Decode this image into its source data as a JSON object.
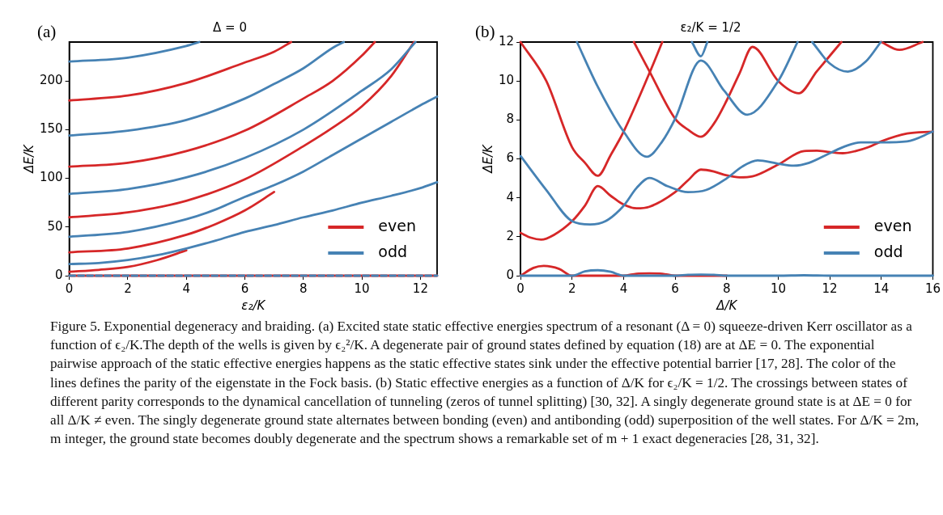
{
  "chart_data": [
    {
      "type": "line",
      "title": "Δ = 0",
      "xlabel": "ε₂/K",
      "ylabel": "ΔE/K",
      "xlim": [
        0,
        12.57
      ],
      "xticks": [
        0,
        2,
        4,
        6,
        8,
        10,
        12
      ],
      "ylim": [
        0,
        240
      ],
      "yticks": [
        0,
        50,
        100,
        150,
        200
      ],
      "legend": "bottom right",
      "annotations": [
        "(a)",
        "Figure 5. Exponential degeneracy and braiding. (a) Excited state static effective energies spectrum of a resonant (Δ = 0) squeeze-driven Kerr oscillator as a function of ϵ₂/K.The depth of the wells is given by ϵ₂²/K. A degenerate pair of ground states defined by equation (18) are at ΔE = 0. The exponential pairwise approach of the static effective energies happens as the static effective states sink under the effective potential barrier [17, 28]. The color of the lines defines the parity of the eigenstate in the Fock basis. (b) Static effective energies as a function of Δ/K for ϵ₂/K = 1/2. The crossings between states of different parity corresponds to the dynamical cancellation of tunneling (zeros of tunnel splitting) [30, 32]. A singly degenerate ground state is at ΔE = 0 for all Δ/K ≠ even. The singly degenerate ground state alternates between bonding (even) and antibonding (odd) superposition of the well states. For Δ/K = 2m, m integer, the ground state becomes doubly degenerate and the spectrum shows a remarkable set of m + 1 exact degeneracies [28, 31, 32]."
      ],
      "series": [
        {
          "name": "even",
          "color": "#d62728",
          "x": [
            0,
            12.57
          ],
          "values": [
            0,
            0
          ]
        },
        {
          "name": "odd",
          "color": "#4682b4",
          "x": [
            0,
            12.57
          ],
          "values": [
            0,
            0
          ],
          "line_style": "dashed"
        },
        {
          "color": "#d62728",
          "x": [
            0,
            1,
            2,
            3,
            4
          ],
          "values": [
            4,
            6,
            9,
            16,
            26
          ]
        },
        {
          "color": "#4682b4",
          "x": [
            0,
            1,
            2,
            3,
            4,
            5,
            6,
            7,
            8,
            9,
            10,
            11,
            12,
            12.57
          ],
          "values": [
            12,
            13,
            16,
            21,
            28,
            36,
            45,
            52,
            60,
            67,
            75,
            82,
            90,
            96
          ]
        },
        {
          "color": "#d62728",
          "x": [
            0,
            2,
            4,
            5,
            6,
            7
          ],
          "values": [
            24,
            28,
            42,
            53,
            67,
            86
          ]
        },
        {
          "color": "#4682b4",
          "x": [
            0,
            2,
            4,
            5,
            6,
            7,
            8,
            9,
            10,
            11,
            12,
            12.57
          ],
          "values": [
            40,
            45,
            58,
            68,
            81,
            93,
            107,
            124,
            141,
            158,
            175,
            184
          ]
        },
        {
          "color": "#d62728",
          "x": [
            0,
            2,
            4,
            6,
            8,
            9,
            10,
            11,
            11.78
          ],
          "values": [
            60,
            65,
            77,
            99,
            133,
            152,
            174,
            205,
            240
          ]
        },
        {
          "color": "#4682b4",
          "x": [
            0,
            2,
            4,
            6,
            8,
            10,
            11,
            11.83
          ],
          "values": [
            84,
            89,
            101,
            121,
            150,
            190,
            212,
            240
          ]
        },
        {
          "color": "#d62728",
          "x": [
            0,
            2,
            4,
            6,
            8,
            9,
            10,
            10.44
          ],
          "values": [
            112,
            116,
            128,
            149,
            182,
            200,
            226,
            240
          ]
        },
        {
          "color": "#4682b4",
          "x": [
            0,
            2,
            4,
            6,
            7,
            8,
            9,
            9.38
          ],
          "values": [
            144,
            149,
            160,
            182,
            197,
            213,
            234,
            240
          ]
        },
        {
          "color": "#d62728",
          "x": [
            0,
            2,
            4,
            6,
            7,
            7.58
          ],
          "values": [
            180,
            185,
            198,
            219,
            230,
            240
          ]
        },
        {
          "color": "#4682b4",
          "x": [
            0,
            2,
            4,
            4.44
          ],
          "values": [
            220,
            224,
            236,
            240
          ]
        }
      ]
    },
    {
      "type": "line",
      "title": "ε₂/K = 1/2",
      "xlabel": "Δ/K",
      "ylabel": "ΔE/K",
      "xlim": [
        0,
        16
      ],
      "xticks": [
        0,
        2,
        4,
        6,
        8,
        10,
        12,
        14,
        16
      ],
      "ylim": [
        0,
        12
      ],
      "yticks": [
        0,
        2,
        4,
        6,
        8,
        10,
        12
      ],
      "legend": "bottom right",
      "annotations": [
        "(b)"
      ],
      "series": [
        {
          "name": "even",
          "color": "#d62728",
          "x": [
            0,
            0.5,
            0.9,
            1.5,
            2,
            4,
            4.5,
            5,
            5.5,
            6,
            8
          ],
          "values": [
            0,
            0.4,
            0.5,
            0.35,
            0,
            0,
            0.1,
            0.12,
            0.1,
            0,
            0
          ]
        },
        {
          "name": "odd",
          "color": "#4682b4",
          "x": [
            0,
            2,
            2.5,
            3,
            3.5,
            4,
            6,
            6.5,
            7,
            7.5,
            8,
            10,
            11,
            12,
            16
          ],
          "values": [
            0,
            0,
            0.22,
            0.28,
            0.2,
            0,
            0,
            0.05,
            0.06,
            0.05,
            0,
            0,
            0.02,
            0,
            0
          ]
        },
        {
          "color": "#d62728",
          "x": [
            0,
            0.4,
            0.8,
            1.3,
            2,
            2.5,
            3,
            3.5,
            4,
            4.5,
            5,
            6,
            6.5,
            7,
            7.5,
            8,
            8.5,
            9,
            10,
            11,
            11.5,
            12,
            12.5,
            13,
            13.5,
            14,
            15,
            16
          ],
          "values": [
            2.2,
            1.95,
            1.85,
            2.1,
            2.8,
            3.6,
            4.6,
            4.1,
            3.65,
            3.46,
            3.54,
            4.29,
            4.9,
            5.45,
            5.35,
            5.15,
            5.05,
            5.1,
            5.71,
            6.4,
            6.42,
            6.35,
            6.29,
            6.4,
            6.6,
            6.9,
            7.3,
            7.4
          ]
        },
        {
          "color": "#4682b4",
          "x": [
            0,
            1,
            2,
            2.7,
            3.3,
            4,
            4.5,
            5,
            5.7,
            6.5,
            7.2,
            8,
            8.6,
            9.2,
            10,
            10.6,
            11.2,
            12,
            12.6,
            13.2,
            14,
            15,
            16
          ],
          "values": [
            6.15,
            4.4,
            2.8,
            2.63,
            2.8,
            3.59,
            4.5,
            5.02,
            4.6,
            4.29,
            4.4,
            5,
            5.6,
            5.92,
            5.75,
            5.65,
            5.8,
            6.29,
            6.65,
            6.85,
            6.85,
            6.9,
            7.4
          ]
        },
        {
          "color": "#d62728",
          "x": [
            0,
            1,
            2,
            2.5,
            3,
            3.5,
            4,
            5,
            5.5
          ],
          "values": [
            12,
            10,
            6.6,
            5.8,
            5.13,
            6.2,
            7.4,
            10.4,
            12
          ]
        },
        {
          "color": "#d62728",
          "x": [
            4.4,
            5,
            6,
            6.5,
            7,
            7.5,
            8,
            8.5,
            9,
            10,
            10.8,
            11.5,
            12.45
          ],
          "values": [
            12,
            10.5,
            8.06,
            7.5,
            7.14,
            7.8,
            9,
            10.4,
            11.75,
            10,
            9.37,
            10.5,
            12
          ]
        },
        {
          "color": "#d62728",
          "x": [
            14,
            14.7,
            15.6
          ],
          "values": [
            12,
            11.6,
            12
          ]
        },
        {
          "color": "#4682b4",
          "x": [
            2.19,
            3,
            4,
            4.9,
            5.5,
            6,
            7,
            7.9,
            8.8,
            10,
            10.75
          ],
          "values": [
            12,
            9.7,
            7.4,
            6.11,
            6.9,
            8.06,
            11.05,
            9.5,
            8.27,
            10,
            12
          ]
        },
        {
          "color": "#4682b4",
          "x": [
            6.65,
            7,
            7.25
          ],
          "values": [
            12,
            11.27,
            12
          ]
        },
        {
          "color": "#4682b4",
          "x": [
            11.32,
            12,
            12.7,
            13.4,
            13.98
          ],
          "values": [
            12,
            10.9,
            10.48,
            11,
            12
          ]
        }
      ]
    }
  ]
}
